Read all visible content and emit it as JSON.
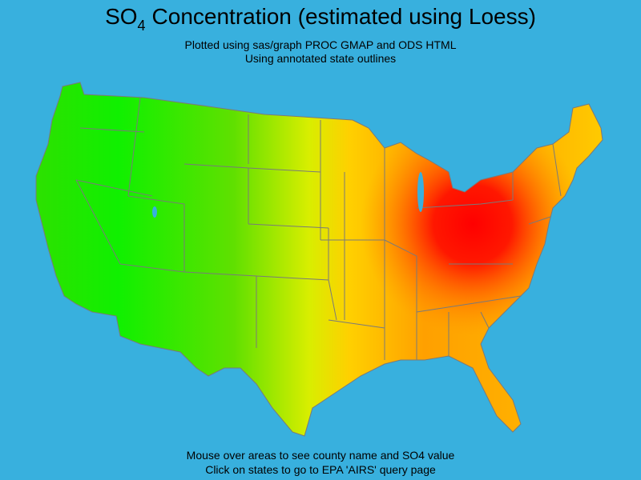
{
  "header": {
    "title": {
      "main": "SO",
      "subscript": "4",
      "rest": "Concentration (estimated using Loess)"
    },
    "subtitle_lines": [
      "Plotted using sas/graph PROC GMAP and ODS HTML",
      "Using annotated state outlines"
    ]
  },
  "footer": {
    "lines": [
      "Mouse over areas to see county name and SO4 value",
      "Click on states to go to EPA 'AIRS' query page"
    ]
  }
}
